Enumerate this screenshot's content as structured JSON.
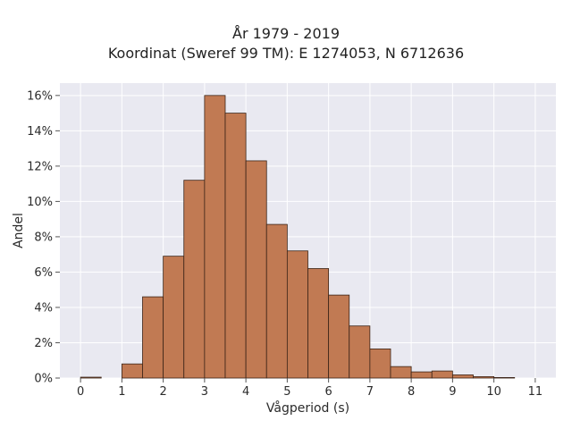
{
  "chart_data": {
    "type": "bar",
    "title_lines": [
      "År 1979 - 2019",
      "Koordinat (Sweref 99 TM): E 1274053, N 6712636"
    ],
    "xlabel": "Vågperiod (s)",
    "ylabel": "Andel",
    "xlim": [
      -0.5,
      11.5
    ],
    "ylim": [
      0,
      16.7
    ],
    "bin_width": 0.5,
    "x_ticks": [
      0,
      1,
      2,
      3,
      4,
      5,
      6,
      7,
      8,
      9,
      10,
      11
    ],
    "x_tick_labels": [
      "0",
      "1",
      "2",
      "3",
      "4",
      "5",
      "6",
      "7",
      "8",
      "9",
      "10",
      "11"
    ],
    "y_ticks": [
      0,
      2,
      4,
      6,
      8,
      10,
      12,
      14,
      16
    ],
    "y_tick_labels": [
      "0%",
      "2%",
      "4%",
      "6%",
      "8%",
      "10%",
      "12%",
      "14%",
      "16%"
    ],
    "bin_starts": [
      0,
      1,
      1.5,
      2,
      2.5,
      3,
      3.5,
      4,
      4.5,
      5,
      5.5,
      6,
      6.5,
      7,
      7.5,
      8,
      8.5,
      9,
      9.5,
      10
    ],
    "values": [
      0.05,
      0.8,
      4.6,
      6.9,
      11.2,
      16.0,
      15.0,
      12.3,
      8.7,
      7.2,
      6.2,
      4.7,
      2.95,
      1.65,
      0.65,
      0.35,
      0.4,
      0.18,
      0.08,
      0.03
    ],
    "grid": true,
    "bar_color": "#c17a53",
    "bar_edge_color": "#3b2417",
    "plot_background": "#e9e9f1"
  }
}
